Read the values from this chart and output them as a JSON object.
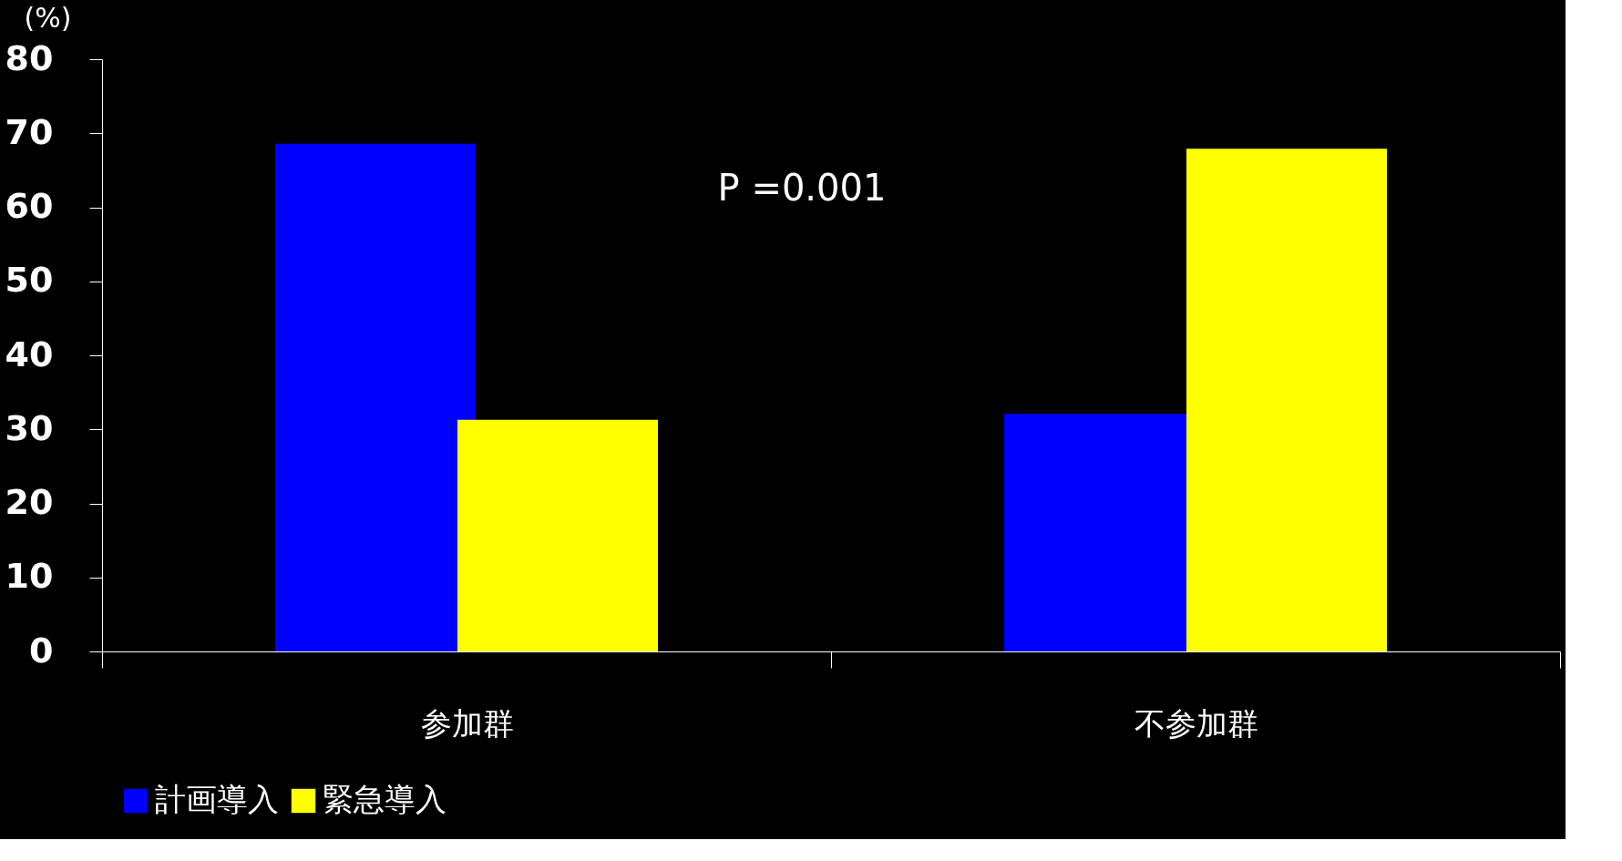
{
  "chart_data": {
    "type": "bar",
    "ylabel": "(%)",
    "categories": [
      "参加群",
      "不参加群"
    ],
    "series": [
      {
        "name": "計画導入",
        "color": "#0000ff",
        "values": [
          68.6,
          32.1
        ]
      },
      {
        "name": "緊急導入",
        "color": "#ffff00",
        "values": [
          31.3,
          67.9
        ]
      }
    ],
    "ylim": [
      0,
      80
    ],
    "yticks": [
      0,
      10,
      20,
      30,
      40,
      50,
      60,
      70,
      80
    ],
    "grid": false,
    "legend": "bottom",
    "annotations": [
      "P =0.001"
    ]
  }
}
